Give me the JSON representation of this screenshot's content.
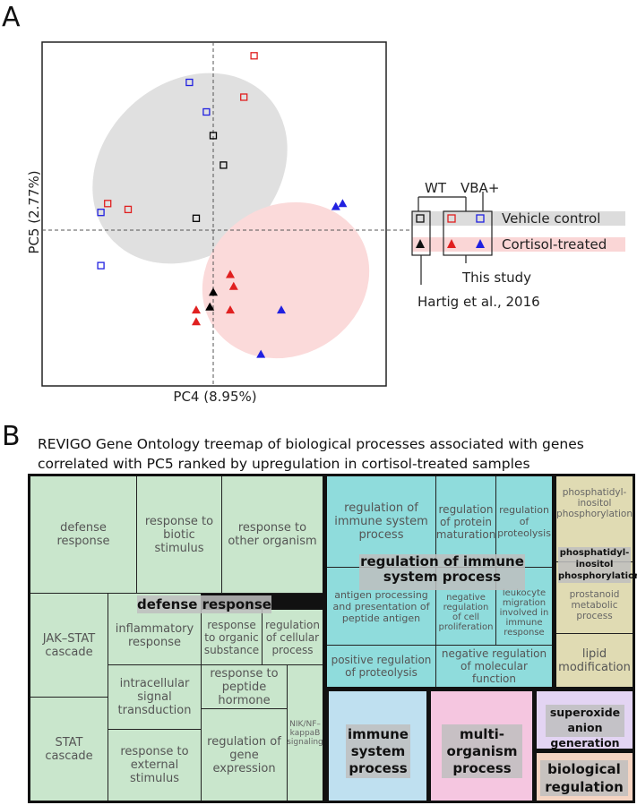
{
  "panel_a": {
    "letter": "A",
    "legend": {
      "wt": "WT",
      "vba": "VBA+",
      "vehicle": "Vehicle control",
      "cortisol": "Cortisol-treated",
      "this_study": "This study",
      "hartig": "Hartig et al., 2016"
    }
  },
  "panel_b": {
    "letter": "B",
    "title_line1": "REVIGO Gene Ontology treemap of biological processes associated with genes",
    "title_line2": "correlated with PC5 ranked by upregulation in cortisol-treated samples",
    "groups": {
      "defense": "defense response",
      "immune_reg": "regulation of immune system process",
      "phosphatidyl": "phosphatidyl-inositol phosphorylation",
      "immune": "immune system process",
      "multi": "multi-organism process",
      "superoxide": "superoxide anion generation",
      "bioreg": "biological regulation"
    },
    "tiles": {
      "defense_response": "defense response",
      "response_biotic": "response to biotic stimulus",
      "response_other": "response to other organism",
      "jak_stat": "JAK–STAT cascade",
      "stat": "STAT cascade",
      "inflammatory": "inflammatory response",
      "organic": "response to organic substance",
      "cellular": "regulation of cellular process",
      "intracellular": "intracellular signal transduction",
      "peptide_hormone": "response to peptide hormone",
      "nik": "NIK/NF–kappaB signaling",
      "external": "response to external stimulus",
      "gene_expression": "regulation of gene expression",
      "immune_sys": "regulation of immune system process",
      "protein_maturation": "regulation of protein maturation",
      "proteolysis": "regulation of proteolysis",
      "antigen": "antigen processing and presentation of peptide antigen",
      "neg_prolif": "negative regulation of cell proliferation",
      "leukocyte": "leukocyte migration involved in immune response",
      "pos_proteolysis": "positive regulation of proteolysis",
      "neg_molecular": "negative regulation of molecular function",
      "pip": "phosphatidyl-inositol phosphorylation",
      "prostanoid": "prostanoid metabolic process",
      "lipid": "lipid modification"
    }
  },
  "chart_data": {
    "type": "scatter",
    "xlabel": "PC4 (8.95%)",
    "ylabel": "PC5 (2.77%)",
    "axes_ticks": false,
    "groups": [
      {
        "name": "Vehicle control",
        "genotype": "WT",
        "source": "Hartig et al., 2016",
        "marker": "open-square",
        "color": "#000000",
        "points": [
          [
            0.0,
            3.2
          ],
          [
            0.3,
            2.2
          ],
          [
            -0.5,
            0.4
          ]
        ]
      },
      {
        "name": "Vehicle control",
        "genotype": "WT",
        "source": "This study",
        "marker": "open-square",
        "color": "#e02020",
        "points": [
          [
            1.2,
            5.9
          ],
          [
            0.9,
            4.5
          ],
          [
            -3.1,
            0.9
          ],
          [
            -2.5,
            0.7
          ]
        ]
      },
      {
        "name": "Vehicle control",
        "genotype": "VBA+",
        "source": "This study",
        "marker": "open-square",
        "color": "#2020e0",
        "points": [
          [
            -0.7,
            5.0
          ],
          [
            -0.2,
            4.0
          ],
          [
            -3.3,
            0.6
          ],
          [
            -3.3,
            -1.2
          ]
        ]
      },
      {
        "name": "Cortisol-treated",
        "genotype": "WT",
        "source": "Hartig et al., 2016",
        "marker": "filled-triangle",
        "color": "#000000",
        "points": [
          [
            0.0,
            -2.1
          ],
          [
            -0.1,
            -2.6
          ]
        ]
      },
      {
        "name": "Cortisol-treated",
        "genotype": "WT",
        "source": "This study",
        "marker": "filled-triangle",
        "color": "#e02020",
        "points": [
          [
            0.5,
            -1.5
          ],
          [
            0.6,
            -1.9
          ],
          [
            -0.5,
            -2.7
          ],
          [
            -0.5,
            -3.1
          ],
          [
            0.5,
            -2.7
          ]
        ]
      },
      {
        "name": "Cortisol-treated",
        "genotype": "VBA+",
        "source": "This study",
        "marker": "filled-triangle",
        "color": "#2020e0",
        "points": [
          [
            3.6,
            0.8
          ],
          [
            3.8,
            0.9
          ],
          [
            2.0,
            -2.7
          ],
          [
            1.4,
            -4.2
          ]
        ]
      }
    ],
    "ellipses": [
      {
        "group": "Vehicle control",
        "color": "#e0e0e0"
      },
      {
        "group": "Cortisol-treated",
        "color": "#fbdada"
      }
    ]
  }
}
